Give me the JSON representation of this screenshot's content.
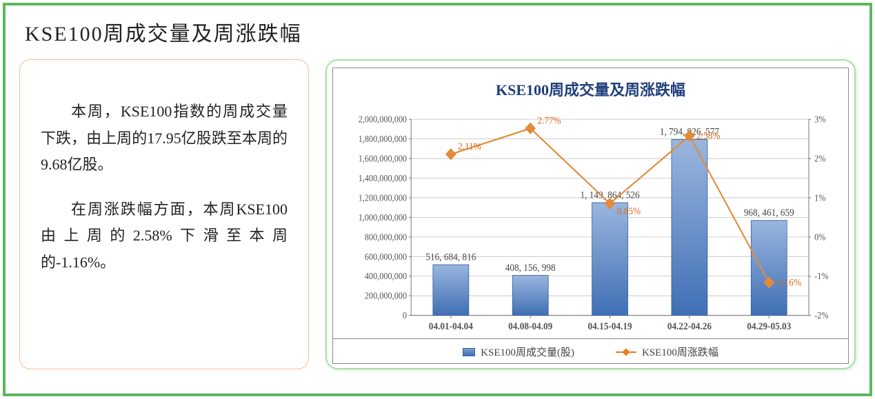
{
  "title": "KSE100周成交量及周涨跌幅",
  "text_panel": {
    "p1": "本周，KSE100指数的周成交量下跌，由上周的17.95亿股跌至本周的9.68亿股。",
    "p2": "在周涨跌幅方面，本周KSE100由上周的2.58%下滑至本周的-1.16%。"
  },
  "chart": {
    "title": "KSE100周成交量及周涨跌幅",
    "type": "bar+line",
    "categories": [
      "04.01-04.04",
      "04.08-04.09",
      "04.15-04.19",
      "04.22-04.26",
      "04.29-05.03"
    ],
    "bars": {
      "values": [
        516684816,
        408156998,
        1149864526,
        1794926577,
        968461659
      ],
      "labels": [
        "516, 684, 816",
        "408, 156, 998",
        "1, 149, 864, 526",
        "1, 794, 926, 577",
        "968, 461, 659"
      ],
      "fill_top": "#9ab6de",
      "fill_bottom": "#3f6fb5",
      "border": "#355f9e",
      "bar_width_ratio": 0.45
    },
    "line": {
      "values_pct": [
        2.11,
        2.77,
        0.85,
        2.58,
        -1.16
      ],
      "labels": [
        "2.11%",
        "2.77%",
        "0.85%",
        "2.58%",
        "-1.16%"
      ],
      "color": "#e28b3b",
      "marker": "diamond",
      "marker_size": 7,
      "line_width": 2
    },
    "y_left": {
      "min": 0,
      "max": 2000000000,
      "step": 200000000,
      "tick_labels": [
        "0",
        "200,000,000",
        "400,000,000",
        "600,000,000",
        "800,000,000",
        "1,000,000,000",
        "1,200,000,000",
        "1,400,000,000",
        "1,600,000,000",
        "1,800,000,000",
        "2,000,000,000"
      ]
    },
    "y_right": {
      "min": -2,
      "max": 3,
      "step": 1,
      "tick_labels": [
        "-2%",
        "-1%",
        "0%",
        "1%",
        "2%",
        "3%"
      ]
    },
    "legend": {
      "bar_label": "KSE100周成交量(股)",
      "line_label": "KSE100周涨跌幅"
    },
    "colors": {
      "grid": "#bfbfbf",
      "axis": "#7a7a7a",
      "bg": "#ffffff"
    },
    "title_fontsize": 22,
    "axis_fontsize": 12,
    "category_fontsize": 13
  }
}
